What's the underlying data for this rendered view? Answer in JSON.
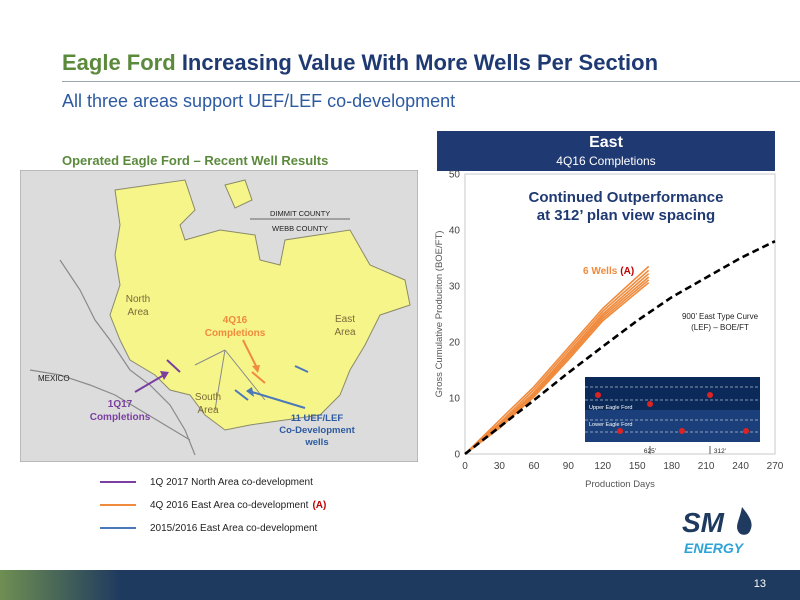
{
  "title": {
    "part1": "Eagle Ford",
    "part2": "Increasing Value With More Wells Per Section"
  },
  "subtitle": "All three areas support UEF/LEF co-development",
  "map": {
    "title": "Operated Eagle Ford – Recent Well Results",
    "county_upper": "DIMMIT COUNTY",
    "county_lower": "WEBB COUNTY",
    "mexico": "MEXICO",
    "north_area": [
      "North",
      "Area"
    ],
    "south_area": [
      "South",
      "Area"
    ],
    "east_area": [
      "East",
      "Area"
    ],
    "callout_4q16": [
      "4Q16",
      "Completions"
    ],
    "callout_1q17": [
      "1Q17",
      "Completions"
    ],
    "callout_uef": [
      "11 UEF/LEF",
      "Co-Development",
      "wells"
    ],
    "colors": {
      "land": "#f6f58a",
      "land_border": "#8a8a6a",
      "background": "#dcdcdc",
      "purple": "#7a3fa0",
      "orange": "#f08a3c",
      "blue": "#4a78b8"
    }
  },
  "legend": [
    {
      "label": "1Q 2017 North Area co-development",
      "color": "#7a3fa0",
      "marker": ""
    },
    {
      "label": "4Q 2016 East Area co-development",
      "color": "#f08a3c",
      "marker": "(A)"
    },
    {
      "label": "2015/2016 East Area co-development",
      "color": "#4a78b8",
      "marker": ""
    }
  ],
  "east_header": {
    "title": "East",
    "subtitle": "4Q16 Completions"
  },
  "chart_data": {
    "type": "line",
    "title": "Continued Outperformance at 312’ plan view spacing",
    "title_lines": [
      "Continued Outperformance",
      "at 312’ plan view spacing"
    ],
    "xlabel": "Production Days",
    "ylabel": "Gross Cumulative Produciton (BOE/FT)",
    "xlim": [
      0,
      270
    ],
    "ylim": [
      0,
      50
    ],
    "xticks": [
      0,
      30,
      60,
      90,
      120,
      150,
      180,
      210,
      240,
      270
    ],
    "yticks": [
      0,
      10,
      20,
      30,
      40,
      50
    ],
    "grid": false,
    "series": [
      {
        "name": "6 Wells",
        "marker": "(A)",
        "color": "#f08a3c",
        "x": [
          0,
          30,
          60,
          90,
          120,
          160
        ],
        "y": [
          0,
          6,
          12,
          19,
          26,
          33.5
        ]
      },
      {
        "name": "",
        "color": "#f08a3c",
        "x": [
          0,
          30,
          60,
          90,
          120,
          160
        ],
        "y": [
          0,
          5.5,
          11.5,
          18.5,
          25.5,
          32.8
        ]
      },
      {
        "name": "",
        "color": "#f08a3c",
        "x": [
          0,
          30,
          60,
          90,
          120,
          160
        ],
        "y": [
          0,
          5.2,
          11,
          18,
          25,
          32.2
        ]
      },
      {
        "name": "",
        "color": "#f08a3c",
        "x": [
          0,
          30,
          60,
          90,
          120,
          160
        ],
        "y": [
          0,
          5,
          10.8,
          17.6,
          24.6,
          31.6
        ]
      },
      {
        "name": "",
        "color": "#f08a3c",
        "x": [
          0,
          30,
          60,
          90,
          120,
          160
        ],
        "y": [
          0,
          4.8,
          10.5,
          17.2,
          24.2,
          31.1
        ]
      },
      {
        "name": "",
        "color": "#f08a3c",
        "x": [
          0,
          30,
          60,
          90,
          120,
          160
        ],
        "y": [
          0,
          4.6,
          10.2,
          16.8,
          23.8,
          30.6
        ]
      },
      {
        "name": "900’ East Type Curve (LEF) – BOE/FT",
        "color": "#000000",
        "dashed": true,
        "x": [
          0,
          30,
          60,
          90,
          120,
          150,
          180,
          210,
          240,
          270
        ],
        "y": [
          0,
          4.8,
          9.6,
          14.5,
          19.2,
          23.8,
          28,
          31.5,
          35,
          38
        ]
      }
    ],
    "label_6wells": "6 Wells",
    "label_6wells_marker": "(A)",
    "type_curve_label": [
      "900’ East Type Curve",
      "(LEF) – BOE/FT"
    ],
    "inset": {
      "upper": "Upper Eagle Ford",
      "lower": "Lower Eagle Ford",
      "spacing_625": "625’",
      "spacing_312": "312’"
    }
  },
  "logo": {
    "sm": "SM",
    "energy": "ENERGY"
  },
  "page_number": "13"
}
